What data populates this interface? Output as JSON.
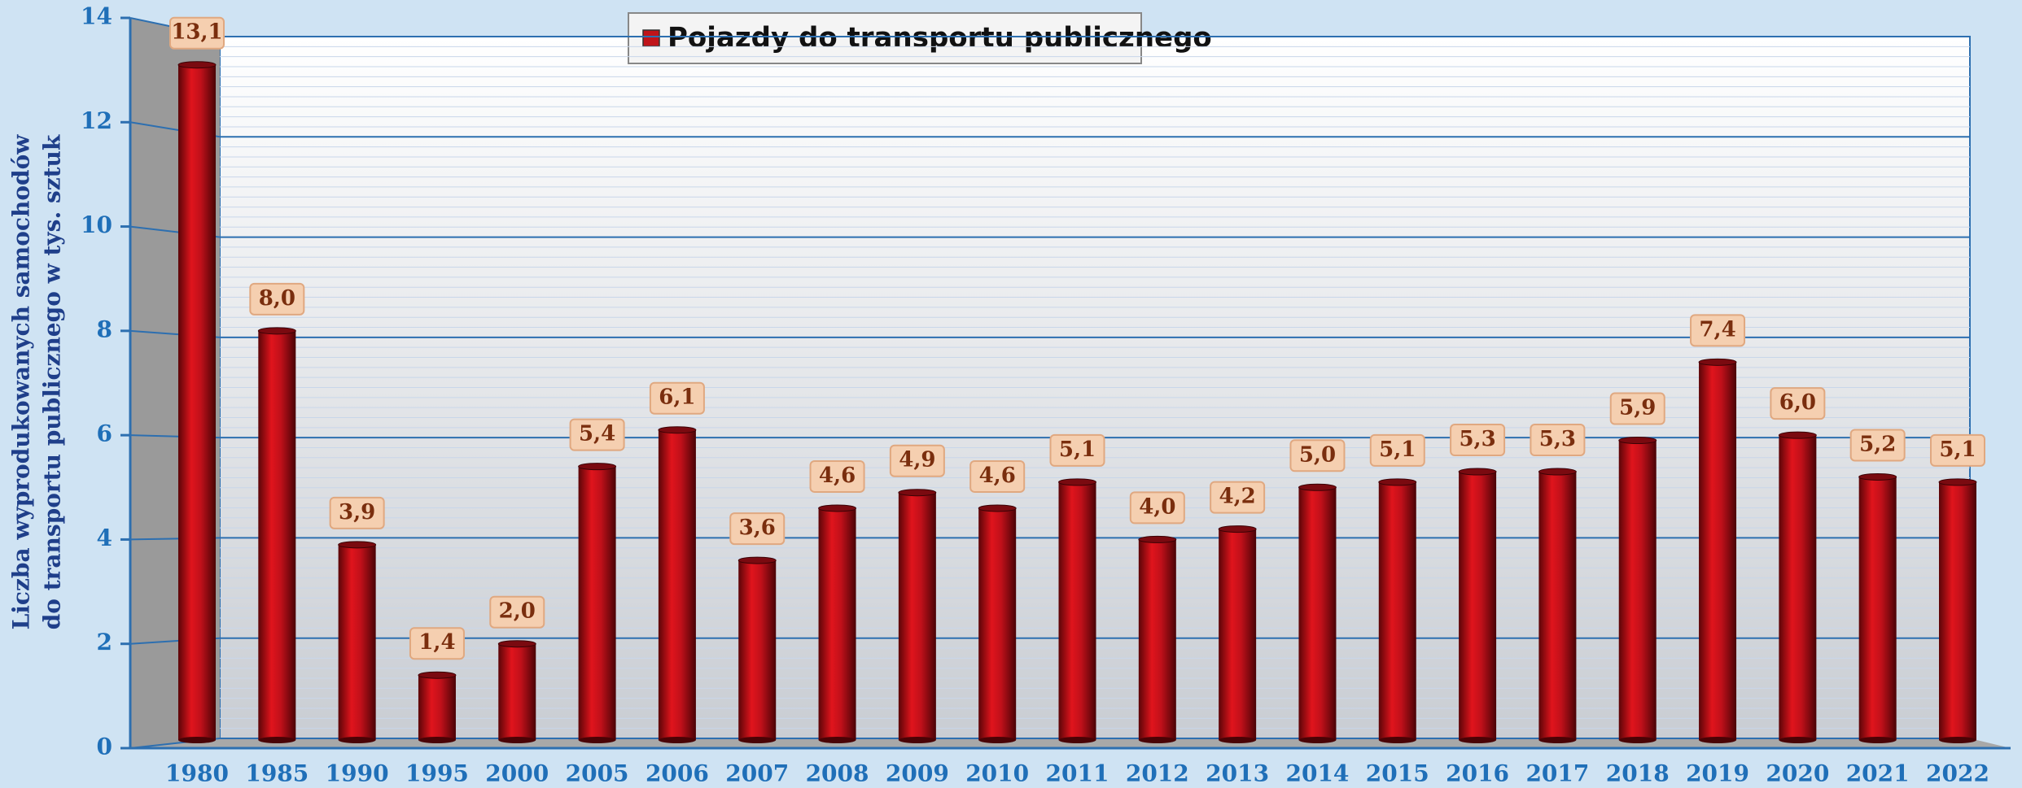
{
  "chart_data": {
    "type": "bar",
    "y_label": [
      "Liczba wyprodukowanych samochodów",
      "do transportu publicznego w tys. sztuk"
    ],
    "categories": [
      "1980",
      "1985",
      "1990",
      "1995",
      "2000",
      "2005",
      "2006",
      "2007",
      "2008",
      "2009",
      "2010",
      "2011",
      "2012",
      "2013",
      "2014",
      "2015",
      "2016",
      "2017",
      "2018",
      "2019",
      "2020",
      "2021",
      "2022"
    ],
    "series": [
      {
        "name": "Pojazdy do transportu publicznego",
        "color": "#c0141a",
        "values": [
          13.1,
          8.0,
          3.9,
          1.4,
          2.0,
          5.4,
          6.1,
          3.6,
          4.6,
          4.9,
          4.6,
          5.1,
          4.0,
          4.2,
          5.0,
          5.1,
          5.3,
          5.3,
          5.9,
          7.4,
          6.0,
          5.2,
          5.1
        ],
        "value_labels": [
          "13,1",
          "8,0",
          "3,9",
          "1,4",
          "2,0",
          "5,4",
          "6,1",
          "3,6",
          "4,6",
          "4,9",
          "4,6",
          "5,1",
          "4,0",
          "4,2",
          "5,0",
          "5,1",
          "5,3",
          "5,3",
          "5,9",
          "7,4",
          "6,0",
          "5,2",
          "5,1"
        ]
      }
    ],
    "ylim": [
      0,
      14
    ],
    "yticks": [
      0,
      2,
      4,
      6,
      8,
      10,
      12,
      14
    ],
    "grid": true,
    "legend": "top"
  }
}
